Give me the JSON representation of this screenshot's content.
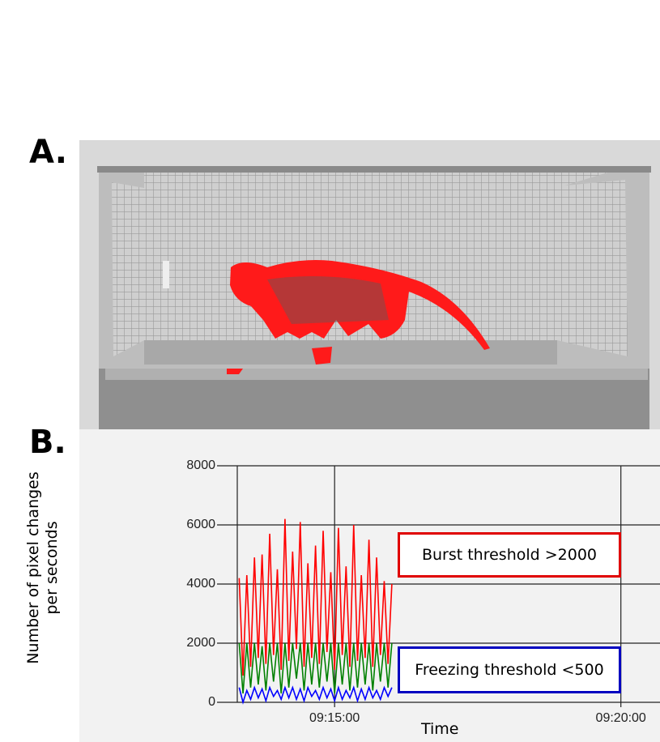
{
  "panel_a": {
    "label": "A."
  },
  "panel_b": {
    "label": "B."
  },
  "chart_data": {
    "type": "line",
    "ylabel": "Number of pixel changes per seconds",
    "xlabel": "Time",
    "annotations": [
      "Burst threshold >2000",
      "Freezing threshold <500"
    ],
    "x": [
      "09:13:20",
      "09:13:24",
      "09:13:28",
      "09:13:32",
      "09:13:36",
      "09:13:40",
      "09:13:44",
      "09:13:48",
      "09:13:52",
      "09:13:56",
      "09:14:00",
      "09:14:04",
      "09:14:08",
      "09:14:12",
      "09:14:16",
      "09:14:20",
      "09:14:24",
      "09:14:28",
      "09:14:32",
      "09:14:36",
      "09:14:40",
      "09:14:44",
      "09:14:48",
      "09:14:52",
      "09:14:56",
      "09:15:00",
      "09:15:04",
      "09:15:08",
      "09:15:12",
      "09:15:16",
      "09:15:20",
      "09:15:24",
      "09:15:28",
      "09:15:32",
      "09:15:36",
      "09:15:40",
      "09:15:44",
      "09:15:48",
      "09:15:52",
      "09:15:56",
      "09:16:00"
    ],
    "series": [
      {
        "color": "#ff0000",
        "values": [
          4200,
          900,
          4300,
          1200,
          4900,
          1500,
          5000,
          1300,
          5700,
          1600,
          4500,
          1100,
          6200,
          1400,
          5100,
          1800,
          6100,
          1200,
          4700,
          1500,
          5300,
          1300,
          5800,
          1700,
          4400,
          1100,
          5900,
          1600,
          4600,
          1200,
          6000,
          1400,
          4300,
          1500,
          5500,
          1200,
          4900,
          1600,
          4100,
          1300,
          4000
        ]
      },
      {
        "color": "#008000",
        "values": [
          2000,
          300,
          2000,
          500,
          2000,
          600,
          1900,
          400,
          2000,
          700,
          2000,
          300,
          2000,
          500,
          2000,
          800,
          2000,
          400,
          2000,
          600,
          2000,
          500,
          2000,
          700,
          2000,
          300,
          2000,
          600,
          2000,
          400,
          2000,
          500,
          2000,
          600,
          2000,
          400,
          2000,
          700,
          2000,
          500,
          2000
        ]
      },
      {
        "color": "#0000ff",
        "values": [
          500,
          0,
          400,
          100,
          500,
          150,
          450,
          50,
          500,
          200,
          400,
          100,
          500,
          150,
          500,
          100,
          450,
          50,
          500,
          200,
          400,
          100,
          500,
          150,
          450,
          50,
          500,
          100,
          400,
          150,
          500,
          50,
          450,
          100,
          500,
          150,
          400,
          100,
          500,
          200,
          500
        ]
      }
    ],
    "xlim": [
      "09:13:18",
      "09:20:41"
    ],
    "xticks": [
      "09:15:00",
      "09:20:00"
    ],
    "ylim": [
      0,
      8000
    ],
    "yticks": [
      0,
      2000,
      4000,
      6000,
      8000
    ],
    "grid": true
  }
}
